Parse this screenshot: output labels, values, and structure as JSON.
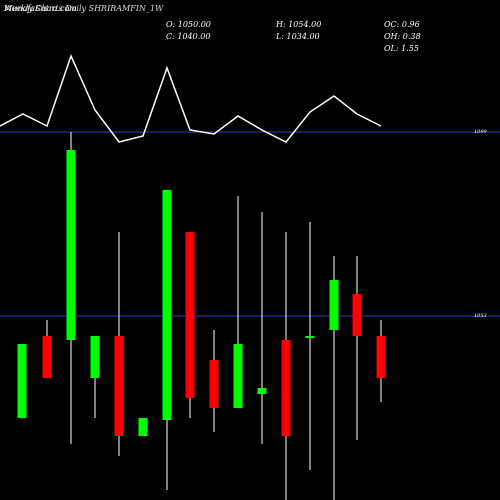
{
  "header": {
    "watermark": "MunafaSutra.com",
    "symbol_line": "Weekly Charts Daily SHRIRAMFIN_1W"
  },
  "ohlc": {
    "open": "O: 1050.00",
    "high": "H: 1054.00",
    "oc": "OC: 0.96",
    "close": "C: 1040.00",
    "low": "L: 1034.00",
    "oh": "OH: 0.38",
    "ol": "OL: 1.55"
  },
  "colors": {
    "background": "#000000",
    "up": "#00ff00",
    "down": "#ff0000",
    "wick": "#ffffff",
    "indicator": "#ffffff",
    "hline": "#3b3bb8"
  },
  "chart_data": {
    "type": "candlestick",
    "title": "SHRIRAMFIN_1W",
    "hlines": [
      {
        "label": "1099"
      },
      {
        "label": "1053"
      }
    ],
    "candles": [
      {
        "dir": "up"
      },
      {
        "dir": "down"
      },
      {
        "dir": "up"
      },
      {
        "dir": "up"
      },
      {
        "dir": "down"
      },
      {
        "dir": "up"
      },
      {
        "dir": "up"
      },
      {
        "dir": "down"
      },
      {
        "dir": "down"
      },
      {
        "dir": "up"
      },
      {
        "dir": "up"
      },
      {
        "dir": "down"
      },
      {
        "dir": "up"
      },
      {
        "dir": "up"
      },
      {
        "dir": "down"
      },
      {
        "dir": "down"
      }
    ]
  }
}
